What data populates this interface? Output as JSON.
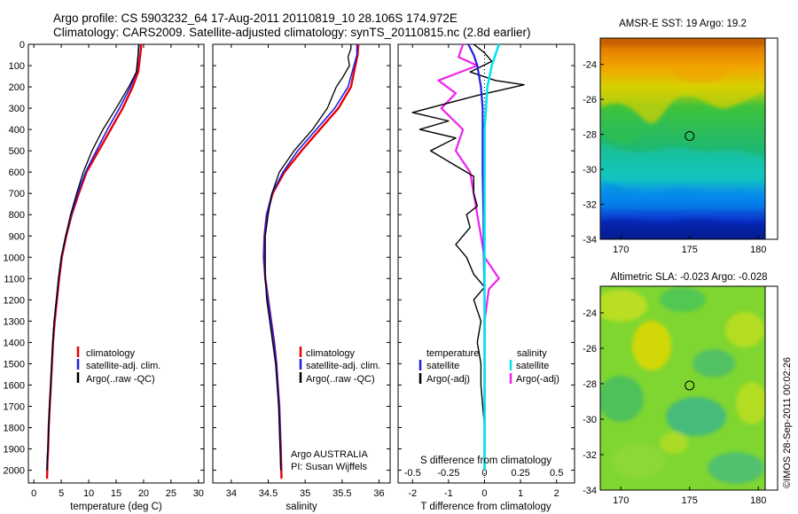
{
  "header": {
    "line1": "Argo profile: CS 5903232_64 17-Aug-2011 20110819_10 28.106S 174.972E",
    "line2": "Climatology: CARS2009. Satellite-adjusted climatology: synTS_20110815.nc (2.8d earlier)"
  },
  "credit": "©IMOS 28-Sep-2011 00:02:26",
  "colors": {
    "climatology": "#e8000b",
    "satellite": "#1f1fe0",
    "argo": "#000000",
    "satellite_salinity": "#00e5ee",
    "argo_salinity": "#ee22ee"
  },
  "chart_data": [
    {
      "type": "line",
      "panel": "temperature",
      "xlabel": "temperature (deg C)",
      "ylabel": "",
      "xlim": [
        -1,
        31
      ],
      "ylim": [
        2060,
        0
      ],
      "y_inverted": true,
      "xticks": [
        0,
        5,
        10,
        15,
        20,
        25,
        30
      ],
      "yticks": [
        0,
        100,
        200,
        300,
        400,
        500,
        600,
        700,
        800,
        900,
        1000,
        1100,
        1200,
        1300,
        1400,
        1500,
        1600,
        1700,
        1800,
        1900,
        2000
      ],
      "legend": [
        "climatology",
        "satellite-adj. clim.",
        "Argo(..raw -QC)"
      ],
      "series": [
        {
          "name": "climatology",
          "x": [
            19.6,
            19.4,
            19.0,
            18.0,
            16.2,
            14.0,
            11.8,
            9.6,
            8.2,
            6.9,
            5.9,
            5.1,
            4.6,
            4.2,
            3.8,
            3.5,
            3.3,
            3.1,
            2.9,
            2.7,
            2.6,
            2.5,
            2.45,
            2.4
          ],
          "y": [
            0,
            50,
            130,
            200,
            300,
            400,
            500,
            600,
            700,
            800,
            900,
            1000,
            1100,
            1200,
            1300,
            1400,
            1500,
            1600,
            1700,
            1800,
            1900,
            1950,
            2000,
            2040
          ]
        },
        {
          "name": "satellite-adj. clim.",
          "x": [
            19.1,
            19.0,
            18.7,
            17.6,
            15.6,
            13.4,
            11.4,
            9.4,
            8.0,
            6.8,
            5.8,
            5.0,
            4.5,
            4.1,
            3.7,
            3.45,
            3.25,
            3.05,
            2.85,
            2.7,
            2.55,
            2.45,
            2.4
          ],
          "y": [
            0,
            50,
            130,
            200,
            300,
            400,
            500,
            600,
            700,
            800,
            900,
            1000,
            1100,
            1200,
            1300,
            1400,
            1500,
            1600,
            1700,
            1800,
            1900,
            1950,
            2000
          ]
        },
        {
          "name": "Argo(..raw -QC)",
          "x": [
            19.2,
            19.0,
            18.7,
            17.3,
            15.0,
            12.6,
            10.6,
            9.0,
            7.8,
            6.7,
            5.8,
            5.0,
            4.5,
            4.1,
            3.7,
            3.45,
            3.25,
            3.05,
            2.85,
            2.7,
            2.55,
            2.45,
            2.4
          ],
          "y": [
            0,
            50,
            130,
            200,
            300,
            400,
            500,
            600,
            700,
            800,
            900,
            1000,
            1100,
            1200,
            1300,
            1400,
            1500,
            1600,
            1700,
            1800,
            1900,
            1950,
            2000
          ]
        }
      ]
    },
    {
      "type": "line",
      "panel": "salinity",
      "xlabel": "salinity",
      "ylabel": "",
      "xlim": [
        33.75,
        36.15
      ],
      "ylim": [
        2060,
        0
      ],
      "y_inverted": true,
      "xticks": [
        34,
        34.5,
        35,
        35.5,
        36
      ],
      "xticklabels": [
        "34",
        "34.5",
        "35",
        "35.5",
        "36"
      ],
      "legend": [
        "climatology",
        "satellite-adj. clim.",
        "Argo(..raw -QC)"
      ],
      "annotation": [
        "Argo AUSTRALIA",
        "PI: Susan Wijffels"
      ],
      "series": [
        {
          "name": "climatology",
          "x": [
            35.72,
            35.71,
            35.68,
            35.62,
            35.45,
            35.2,
            34.95,
            34.72,
            34.56,
            34.48,
            34.45,
            34.44,
            34.46,
            34.5,
            34.54,
            34.58,
            34.61,
            34.63,
            34.65,
            34.66,
            34.67,
            34.68
          ],
          "y": [
            0,
            50,
            100,
            200,
            300,
            400,
            500,
            600,
            700,
            800,
            900,
            1000,
            1100,
            1200,
            1300,
            1400,
            1500,
            1600,
            1700,
            1800,
            1900,
            2040
          ]
        },
        {
          "name": "satellite-adj. clim.",
          "x": [
            35.7,
            35.7,
            35.66,
            35.58,
            35.4,
            35.15,
            34.9,
            34.7,
            34.55,
            34.48,
            34.45,
            34.44,
            34.46,
            34.5,
            34.54,
            34.58,
            34.61,
            34.63,
            34.65,
            34.66,
            34.67
          ],
          "y": [
            0,
            50,
            100,
            200,
            300,
            400,
            500,
            600,
            700,
            800,
            900,
            1000,
            1100,
            1200,
            1300,
            1400,
            1500,
            1600,
            1700,
            1800,
            2000
          ]
        },
        {
          "name": "Argo(..raw -QC)",
          "x": [
            35.62,
            35.62,
            35.58,
            35.6,
            35.5,
            35.42,
            35.3,
            35.1,
            34.85,
            34.65,
            34.55,
            34.5,
            34.46,
            34.46,
            34.46,
            34.48,
            34.52,
            34.56,
            34.6,
            34.62,
            34.64,
            34.65,
            34.66,
            34.67
          ],
          "y": [
            0,
            20,
            60,
            100,
            160,
            200,
            300,
            400,
            500,
            600,
            700,
            800,
            900,
            1000,
            1100,
            1200,
            1300,
            1400,
            1500,
            1600,
            1700,
            1800,
            1900,
            2000
          ]
        }
      ]
    },
    {
      "type": "line",
      "panel": "difference",
      "xlabel": "T difference from climatology",
      "xlabel_top": "S difference from climatology",
      "xlim": [
        -2.4,
        2.5
      ],
      "ylim": [
        2060,
        0
      ],
      "y_inverted": true,
      "xticks": [
        -2,
        -1,
        0,
        1,
        2
      ],
      "s_ticks": [
        -0.5,
        -0.25,
        0,
        0.25,
        0.5
      ],
      "s_ticklabels": [
        "-0.5",
        "-0.25",
        "0",
        "0.25",
        "0.5"
      ],
      "legend_temperature": {
        "header": "temperature",
        "items": [
          "satellite",
          "Argo(-adj)"
        ]
      },
      "legend_salinity": {
        "header": "salinity",
        "items": [
          "satellite",
          "Argo(-adj)"
        ]
      },
      "series": [
        {
          "name": "temperature satellite",
          "x": [
            -0.45,
            -0.3,
            -0.2,
            -0.1,
            -0.05,
            -0.05,
            -0.05,
            -0.03,
            -0.02,
            0.0,
            0.0,
            0.0,
            0.0,
            0.0,
            0.0
          ],
          "y": [
            0,
            50,
            100,
            200,
            300,
            400,
            600,
            800,
            1000,
            1200,
            1400,
            1600,
            1800,
            1900,
            2000
          ]
        },
        {
          "name": "temperature Argo(-adj)",
          "x": [
            -0.3,
            0.0,
            0.2,
            -0.4,
            0.3,
            1.1,
            -0.2,
            -2.0,
            -1.0,
            -1.8,
            -0.8,
            -1.5,
            -0.9,
            -0.3,
            -0.3,
            -0.2,
            -0.5,
            -0.4,
            -0.8,
            -0.5,
            -0.3,
            0.0,
            -0.3,
            -0.1,
            -0.2,
            -0.1,
            -0.1,
            0.0,
            0.0
          ],
          "y": [
            0,
            40,
            80,
            130,
            170,
            190,
            240,
            320,
            360,
            400,
            440,
            500,
            560,
            620,
            700,
            760,
            800,
            860,
            940,
            1000,
            1080,
            1140,
            1200,
            1300,
            1400,
            1500,
            1600,
            1800,
            2000
          ]
        },
        {
          "name": "salinity satellite",
          "x": [
            0.1,
            0.05,
            0.02,
            0.0,
            0.0,
            0.0,
            0.0,
            0.0,
            0.0,
            0.0,
            0.0
          ],
          "y": [
            0,
            100,
            200,
            400,
            600,
            800,
            1000,
            1200,
            1400,
            1800,
            2000
          ]
        },
        {
          "name": "salinity Argo(-adj)",
          "x": [
            -0.15,
            -0.18,
            -0.05,
            -0.32,
            -0.2,
            -0.3,
            -0.15,
            -0.2,
            -0.1,
            -0.05,
            0.0,
            0.1,
            0.03,
            0.0,
            0.0
          ],
          "y": [
            0,
            60,
            100,
            170,
            230,
            300,
            400,
            500,
            600,
            800,
            1000,
            1100,
            1150,
            1300,
            1400
          ]
        }
      ]
    },
    {
      "type": "heatmap",
      "panel": "map_sst",
      "title": "AMSR-E SST: 19 Argo: 19.2",
      "xlim": [
        168.5,
        180.5
      ],
      "ylim": [
        -34,
        -22.5
      ],
      "xticks": [
        170,
        175,
        180
      ],
      "yticks": [
        -24,
        -26,
        -28,
        -30,
        -32,
        -34
      ],
      "marker": {
        "lon": 175.0,
        "lat": -28.1
      }
    },
    {
      "type": "heatmap",
      "panel": "map_sla",
      "title": "Altimetric SLA: -0.023 Argo: -0.028",
      "xlim": [
        168.5,
        180.5
      ],
      "ylim": [
        -34,
        -22.5
      ],
      "xticks": [
        170,
        175,
        180
      ],
      "yticks": [
        -24,
        -26,
        -28,
        -30,
        -32,
        -34
      ],
      "marker": {
        "lon": 175.0,
        "lat": -28.1
      }
    }
  ]
}
